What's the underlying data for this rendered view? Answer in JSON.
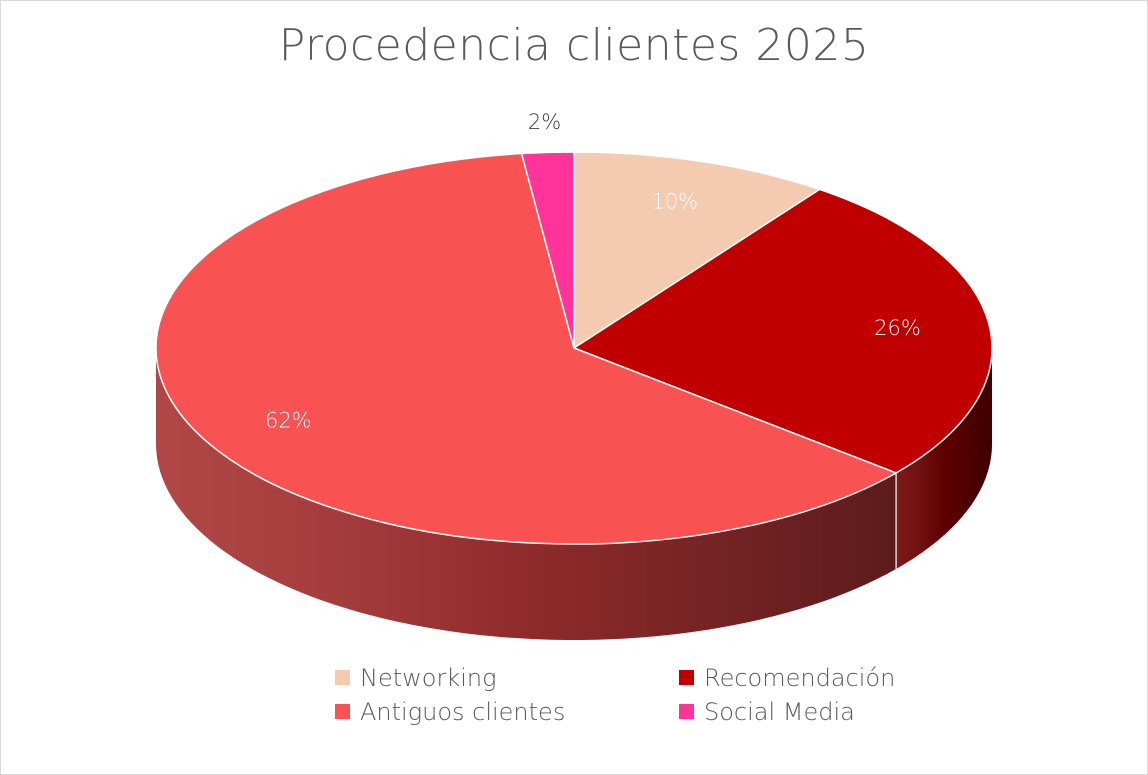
{
  "chart_data": {
    "type": "pie",
    "title": "Procedencia clientes 2025",
    "slices": [
      {
        "label": "Networking",
        "value": 10,
        "display": "10%",
        "color": "#f4cbb0",
        "side_color": "#c9a48e",
        "label_color": "#ffffff"
      },
      {
        "label": "Recomendación",
        "value": 26,
        "display": "26%",
        "color": "#c00000",
        "side_color": "#6e0000",
        "label_color": "#ffffff"
      },
      {
        "label": "Antiguos clientes",
        "value": 62,
        "display": "62%",
        "color": "#f95252",
        "side_color": "#a83232",
        "label_color": "#ffffff"
      },
      {
        "label": "Social Media",
        "value": 2,
        "display": "2%",
        "color": "#ff3399",
        "side_color": "#b0246b",
        "label_color": "#404040"
      }
    ],
    "legend_position": "bottom",
    "style": "3d"
  }
}
